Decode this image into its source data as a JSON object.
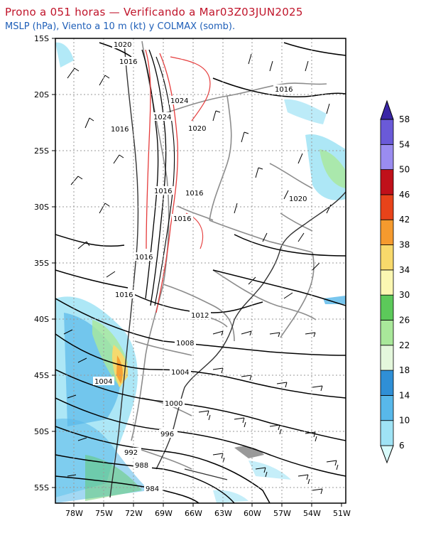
{
  "header": {
    "title": "Prono a 051 horas — Verificando a Mar03Z03JUN2025",
    "subtitle": "MSLP (hPa), Viento a 10 m (kt) y COLMAX (somb)."
  },
  "axes": {
    "lat_labels": [
      "15S",
      "20S",
      "25S",
      "30S",
      "35S",
      "40S",
      "45S",
      "50S",
      "55S"
    ],
    "lon_labels": [
      "78W",
      "75W",
      "72W",
      "69W",
      "66W",
      "63W",
      "60W",
      "57W",
      "54W",
      "51W"
    ]
  },
  "isobars": {
    "labels": [
      "1020",
      "1016",
      "1024",
      "1016",
      "1016",
      "1020",
      "1024",
      "1016",
      "1016",
      "1016",
      "1020",
      "1016",
      "1016",
      "1012",
      "1008",
      "1004",
      "1004",
      "1000",
      "996",
      "992",
      "988",
      "984"
    ]
  },
  "colorbar": {
    "levels": [
      "6",
      "10",
      "14",
      "18",
      "22",
      "26",
      "30",
      "34",
      "38",
      "42",
      "46",
      "50",
      "54",
      "58"
    ],
    "colors": [
      "#d8fbfb",
      "#9fe3f5",
      "#58b8ea",
      "#2f8fd6",
      "#e4f7dc",
      "#a9e89a",
      "#5cc95a",
      "#fbf7b2",
      "#f8d96b",
      "#f59a2e",
      "#e8431a",
      "#c0101a",
      "#9a8cf0",
      "#6a5ad8",
      "#3a26a6"
    ]
  }
}
